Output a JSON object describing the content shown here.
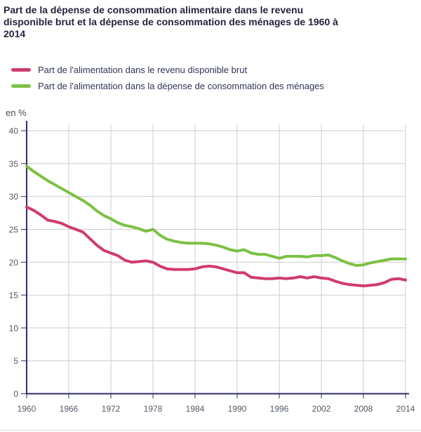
{
  "title": "Part de la dépense de consommation alimentaire dans le revenu disponible brut et la dépense de consommation des ménages de 1960 à 2014",
  "unit_label": "en %",
  "legend": [
    {
      "label": "Part de l'alimentation dans le revenu disponible brut",
      "color": "#d13b6b"
    },
    {
      "label": "Part de l'alimentation dans la dépense de consommation des ménages",
      "color": "#7cc143"
    }
  ],
  "colors": {
    "pink_series": "#d13b6b",
    "green_series": "#7cc143",
    "axis": "#2e2e68",
    "grid": "#cccccc",
    "tick_text": "#515b66",
    "unit_text": "#444c59",
    "title_text": "#23233d"
  },
  "chart_data": {
    "type": "line",
    "title": "Part de la dépense de consommation alimentaire dans le revenu disponible brut et la dépense de consommation des ménages de 1960 à 2014",
    "ylabel": "en %",
    "xlim": [
      1960,
      2014
    ],
    "ylim": [
      0,
      40
    ],
    "xticks": [
      1960,
      1966,
      1972,
      1978,
      1984,
      1990,
      1996,
      2002,
      2008,
      2014
    ],
    "yticks": [
      0,
      5,
      10,
      15,
      20,
      25,
      30,
      35,
      40
    ],
    "grid": true,
    "legend_position": "top-left",
    "x": [
      1960,
      1961,
      1962,
      1963,
      1964,
      1965,
      1966,
      1967,
      1968,
      1969,
      1970,
      1971,
      1972,
      1973,
      1974,
      1975,
      1976,
      1977,
      1978,
      1979,
      1980,
      1981,
      1982,
      1983,
      1984,
      1985,
      1986,
      1987,
      1988,
      1989,
      1990,
      1991,
      1992,
      1993,
      1994,
      1995,
      1996,
      1997,
      1998,
      1999,
      2000,
      2001,
      2002,
      2003,
      2004,
      2005,
      2006,
      2007,
      2008,
      2009,
      2010,
      2011,
      2012,
      2013,
      2014
    ],
    "series": [
      {
        "name": "Part de l'alimentation dans le revenu disponible brut",
        "color": "#d13b6b",
        "values": [
          28.4,
          27.9,
          27.2,
          26.4,
          26.2,
          25.9,
          25.4,
          25.0,
          24.6,
          23.6,
          22.6,
          21.8,
          21.4,
          21.0,
          20.3,
          20.0,
          20.1,
          20.2,
          20.0,
          19.4,
          19.0,
          18.9,
          18.9,
          18.9,
          19.0,
          19.3,
          19.4,
          19.3,
          19.0,
          18.7,
          18.4,
          18.4,
          17.7,
          17.6,
          17.5,
          17.5,
          17.6,
          17.5,
          17.6,
          17.8,
          17.6,
          17.8,
          17.6,
          17.5,
          17.1,
          16.8,
          16.6,
          16.5,
          16.4,
          16.5,
          16.6,
          16.9,
          17.4,
          17.5,
          17.3
        ]
      },
      {
        "name": "Part de l'alimentation dans la dépense de consommation des ménages",
        "color": "#7cc143",
        "values": [
          34.6,
          33.8,
          33.1,
          32.4,
          31.8,
          31.2,
          30.6,
          30.0,
          29.4,
          28.7,
          27.8,
          27.1,
          26.6,
          26.0,
          25.6,
          25.4,
          25.1,
          24.7,
          25.0,
          24.1,
          23.5,
          23.2,
          23.0,
          22.9,
          22.9,
          22.9,
          22.8,
          22.6,
          22.3,
          21.9,
          21.7,
          21.9,
          21.4,
          21.2,
          21.2,
          20.9,
          20.6,
          20.9,
          20.9,
          20.9,
          20.8,
          21.0,
          21.0,
          21.1,
          20.7,
          20.2,
          19.8,
          19.5,
          19.6,
          19.9,
          20.1,
          20.3,
          20.5,
          20.5,
          20.5
        ]
      }
    ]
  }
}
